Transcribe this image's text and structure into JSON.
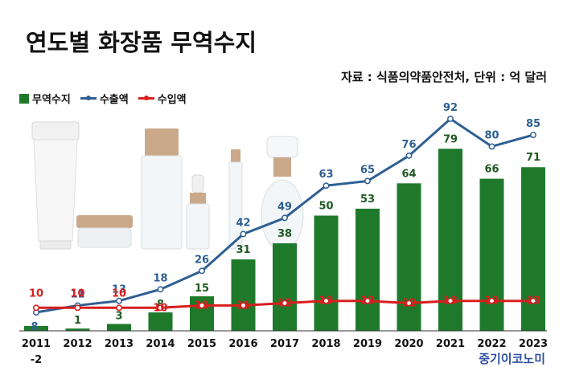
{
  "title": "연도별 화장품 무역수지",
  "source": "자료 : 식품의약품안전처, 단위 : 억 달러",
  "brand": "중기이코노미",
  "chart_data": {
    "type": "bar",
    "title": "연도별 화장품 무역수지",
    "xlabel": "",
    "ylabel": "",
    "categories": [
      "2011",
      "2012",
      "2013",
      "2014",
      "2015",
      "2016",
      "2017",
      "2018",
      "2019",
      "2020",
      "2021",
      "2022",
      "2023"
    ],
    "series": [
      {
        "name": "무역수지",
        "type": "bar",
        "color": "#1e7a2a",
        "values": [
          -2,
          1,
          3,
          8,
          15,
          31,
          38,
          50,
          53,
          64,
          79,
          66,
          71
        ],
        "labels": [
          "-2",
          "1",
          "3",
          "8",
          "15",
          "31",
          "38",
          "50",
          "53",
          "64",
          "79",
          "66",
          "71"
        ]
      },
      {
        "name": "수출액",
        "type": "line",
        "color": "#2e5f93",
        "values": [
          8,
          11,
          13,
          18,
          26,
          42,
          49,
          63,
          65,
          76,
          92,
          80,
          85
        ],
        "labels": [
          "8",
          "11",
          "13",
          "18",
          "26",
          "42",
          "49",
          "63",
          "65",
          "76",
          "92",
          "80",
          "85"
        ]
      },
      {
        "name": "수입액",
        "type": "line",
        "color": "#d81e1e",
        "values": [
          10,
          10,
          10,
          10,
          11,
          11,
          12,
          13,
          13,
          12,
          13,
          13,
          13
        ],
        "labels": [
          "10",
          "10",
          "10",
          "10",
          "11",
          "11",
          "12",
          "13",
          "13",
          "12",
          "13",
          "13",
          "13"
        ]
      }
    ],
    "ylim": [
      -4,
      96
    ],
    "grid": false,
    "legend": "top-left"
  }
}
